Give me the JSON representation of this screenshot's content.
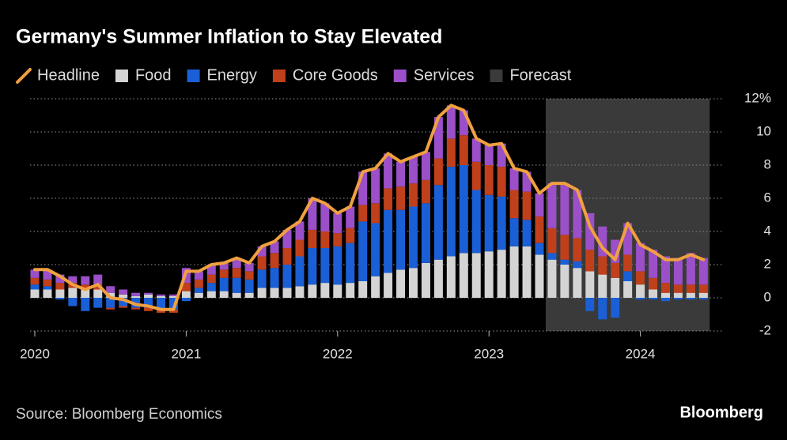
{
  "chart_data": {
    "type": "bar",
    "title": "Germany's Summer Inflation to Stay Elevated",
    "source": "Source: Bloomberg Economics",
    "logo": "Bloomberg",
    "x": [
      "2020-01",
      "2020-02",
      "2020-03",
      "2020-04",
      "2020-05",
      "2020-06",
      "2020-07",
      "2020-08",
      "2020-09",
      "2020-10",
      "2020-11",
      "2020-12",
      "2021-01",
      "2021-02",
      "2021-03",
      "2021-04",
      "2021-05",
      "2021-06",
      "2021-07",
      "2021-08",
      "2021-09",
      "2021-10",
      "2021-11",
      "2021-12",
      "2022-01",
      "2022-02",
      "2022-03",
      "2022-04",
      "2022-05",
      "2022-06",
      "2022-07",
      "2022-08",
      "2022-09",
      "2022-10",
      "2022-11",
      "2022-12",
      "2023-01",
      "2023-02",
      "2023-03",
      "2023-04",
      "2023-05",
      "2023-06",
      "2023-07",
      "2023-08",
      "2023-09",
      "2023-10",
      "2023-11",
      "2023-12",
      "2024-01",
      "2024-02",
      "2024-03",
      "2024-04",
      "2024-05",
      "2024-06"
    ],
    "series": [
      {
        "name": "Headline",
        "type": "line",
        "color": "#f0a040",
        "values": [
          1.7,
          1.7,
          1.3,
          0.8,
          0.5,
          0.8,
          0.0,
          -0.1,
          -0.4,
          -0.5,
          -0.7,
          -0.7,
          1.6,
          1.6,
          2.0,
          2.1,
          2.4,
          2.1,
          3.1,
          3.4,
          4.1,
          4.6,
          6.0,
          5.7,
          5.1,
          5.5,
          7.6,
          7.8,
          8.7,
          8.2,
          8.5,
          8.8,
          10.9,
          11.6,
          11.3,
          9.6,
          9.2,
          9.3,
          7.8,
          7.6,
          6.3,
          6.9,
          6.9,
          6.5,
          4.3,
          3.0,
          2.3,
          4.5,
          3.2,
          2.8,
          2.3,
          2.3,
          2.6,
          2.3
        ]
      },
      {
        "name": "Food",
        "type": "bar",
        "color": "#d4d4d4",
        "values": [
          0.5,
          0.5,
          0.5,
          0.6,
          0.5,
          0.5,
          0.3,
          0.2,
          0.1,
          0.2,
          0.1,
          0.1,
          0.4,
          0.3,
          0.4,
          0.4,
          0.3,
          0.3,
          0.6,
          0.6,
          0.6,
          0.7,
          0.8,
          0.9,
          0.8,
          0.9,
          1.0,
          1.3,
          1.5,
          1.7,
          1.8,
          2.1,
          2.3,
          2.5,
          2.7,
          2.7,
          2.8,
          2.9,
          3.1,
          3.1,
          2.6,
          2.3,
          2.0,
          1.8,
          1.6,
          1.4,
          1.2,
          1.0,
          0.8,
          0.5,
          0.3,
          0.3,
          0.3,
          0.3
        ]
      },
      {
        "name": "Energy",
        "type": "bar",
        "color": "#1a5fd6",
        "values": [
          0.3,
          0.2,
          -0.1,
          -0.5,
          -0.8,
          -0.6,
          -0.6,
          -0.5,
          -0.6,
          -0.6,
          -0.7,
          -0.7,
          -0.2,
          0.3,
          0.5,
          0.8,
          0.9,
          0.8,
          1.1,
          1.2,
          1.4,
          1.8,
          2.2,
          2.1,
          2.3,
          2.4,
          3.6,
          3.2,
          3.8,
          3.6,
          3.7,
          3.6,
          4.5,
          5.4,
          5.3,
          3.8,
          3.4,
          3.2,
          1.7,
          1.6,
          0.7,
          0.4,
          0.3,
          0.4,
          -0.8,
          -1.3,
          -1.2,
          0.6,
          -0.1,
          -0.1,
          -0.2,
          -0.1,
          -0.1,
          -0.1
        ]
      },
      {
        "name": "Core Goods",
        "type": "bar",
        "color": "#c0401c",
        "values": [
          0.4,
          0.4,
          0.4,
          0.3,
          0.3,
          0.3,
          -0.1,
          -0.1,
          -0.1,
          -0.2,
          -0.2,
          -0.2,
          0.5,
          0.5,
          0.5,
          0.5,
          0.6,
          0.5,
          0.8,
          0.9,
          1.0,
          1.0,
          1.1,
          1.0,
          0.8,
          0.9,
          1.0,
          1.2,
          1.3,
          1.4,
          1.4,
          1.4,
          1.6,
          1.7,
          1.8,
          1.7,
          1.8,
          1.8,
          1.7,
          1.7,
          1.6,
          1.5,
          1.5,
          1.4,
          1.3,
          1.1,
          0.9,
          1.0,
          0.8,
          0.7,
          0.6,
          0.5,
          0.5,
          0.5
        ]
      },
      {
        "name": "Services",
        "type": "bar",
        "color": "#9b4fc8",
        "values": [
          0.5,
          0.6,
          0.5,
          0.4,
          0.5,
          0.6,
          0.4,
          0.3,
          0.2,
          0.1,
          0.1,
          0.1,
          0.9,
          0.5,
          0.6,
          0.4,
          0.6,
          0.5,
          0.6,
          0.7,
          1.1,
          1.1,
          1.9,
          1.7,
          1.2,
          1.3,
          2.0,
          2.1,
          2.1,
          1.5,
          1.6,
          1.7,
          2.5,
          2.0,
          1.5,
          1.4,
          1.2,
          1.4,
          1.3,
          1.2,
          1.4,
          2.7,
          3.1,
          2.9,
          2.2,
          1.8,
          1.4,
          1.9,
          1.7,
          1.7,
          1.6,
          1.6,
          1.9,
          1.6
        ]
      }
    ],
    "forecast": {
      "name": "Forecast",
      "color": "#3a3a3a",
      "start": "2023-06",
      "end": "2024-06"
    },
    "ylim": [
      -2,
      12
    ],
    "yticks": [
      -2,
      0,
      2,
      4,
      6,
      8,
      10,
      {
        "value": 12,
        "label": "12%"
      }
    ],
    "xticks": [
      {
        "value": "2020-01",
        "label": "2020"
      },
      {
        "value": "2021-01",
        "label": "2021"
      },
      {
        "value": "2022-01",
        "label": "2022"
      },
      {
        "value": "2023-01",
        "label": "2023"
      },
      {
        "value": "2024-01",
        "label": "2024"
      }
    ],
    "grid": true
  }
}
